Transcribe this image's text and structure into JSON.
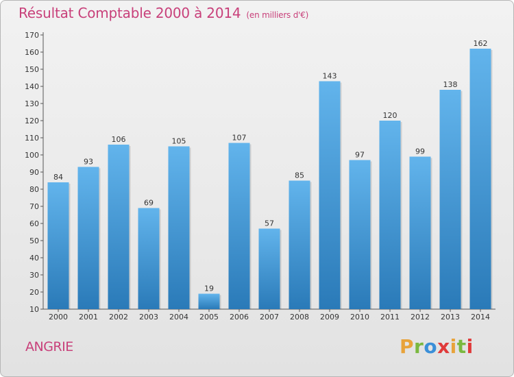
{
  "header": {
    "title": "Résultat Comptable 2000 à 2014",
    "unit": "(en milliers d'€)"
  },
  "footer": {
    "commune": "ANGRIE",
    "logo_text": "Proxiti"
  },
  "colors": {
    "title": "#c8407a",
    "bar_top": "#62b4ec",
    "bar_bottom": "#2a7ab8",
    "logo_letters": [
      "#e8a33a",
      "#7ab840",
      "#3a8fd8",
      "#e03a3a",
      "#e8a33a",
      "#7ab840",
      "#e03a3a"
    ]
  },
  "chart_data": {
    "type": "bar",
    "categories": [
      "2000",
      "2001",
      "2002",
      "2003",
      "2004",
      "2005",
      "2006",
      "2007",
      "2008",
      "2009",
      "2010",
      "2011",
      "2012",
      "2013",
      "2014"
    ],
    "values": [
      84,
      93,
      106,
      69,
      105,
      19,
      107,
      57,
      85,
      143,
      97,
      120,
      99,
      138,
      162
    ],
    "ylim": [
      10,
      170
    ],
    "yticks": [
      10,
      20,
      30,
      40,
      50,
      60,
      70,
      80,
      90,
      100,
      110,
      120,
      130,
      140,
      150,
      160,
      170
    ],
    "grid": false,
    "title": "Résultat Comptable 2000 à 2014",
    "xlabel": "",
    "ylabel": ""
  }
}
